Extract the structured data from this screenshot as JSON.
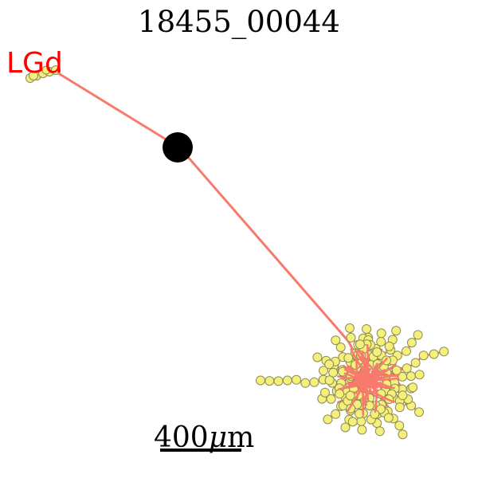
{
  "title": "18455_00044",
  "region_label": "LGd",
  "scale_bar": {
    "number": "400",
    "unit_mu": "μ",
    "unit_m": "m"
  },
  "colors": {
    "axon": "#f87a6c",
    "bouton_fill": "#f4f07a",
    "bouton_stroke": "#8c8c58",
    "soma": "#000000",
    "label": "#ff0000",
    "title": "#000000"
  }
}
